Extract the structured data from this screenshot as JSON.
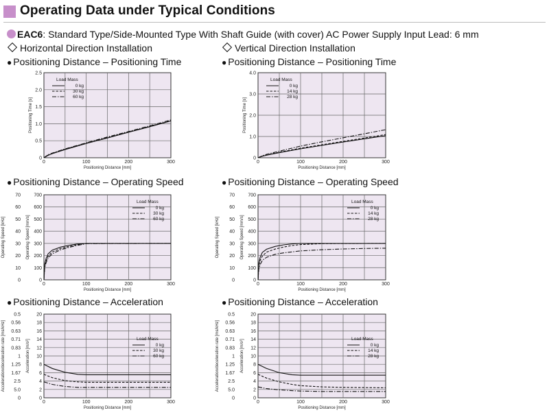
{
  "header": {
    "title": "Operating Data under Typical Conditions"
  },
  "subtitle": {
    "model": "EAC6",
    "description": ": Standard Type/Side-Mounted Type  With Shaft Guide (with cover)  AC Power Supply Input  Lead: 6 mm"
  },
  "sections": {
    "horizontal": "Horizontal Direction Installation",
    "vertical": "Vertical Direction Installation"
  },
  "plot_headings": {
    "time": "Positioning Distance – Positioning Time",
    "speed": "Positioning Distance – Operating Speed",
    "accel": "Positioning Distance – Acceleration"
  },
  "colors": {
    "plot_background": "#eee6f1",
    "accent": "#c78fca"
  },
  "chart_data": [
    {
      "id": "h-time",
      "type": "line",
      "xlabel": "Positioning Distance [mm]",
      "ylabel": "Positioning Time [s]",
      "xlim": [
        0,
        300
      ],
      "ylim": [
        0,
        2.5
      ],
      "xticks": [
        "0",
        "100",
        "200",
        "300"
      ],
      "yticks": [
        "0",
        "0.5",
        "1.0",
        "1.5",
        "2.0",
        "2.5"
      ],
      "legend_title": "Load Mass",
      "legend_position": "top-left",
      "series": [
        {
          "name": "0 kg",
          "style": "solid",
          "x": [
            0,
            10,
            20,
            50,
            100,
            150,
            200,
            250,
            300
          ],
          "y": [
            0,
            0.07,
            0.12,
            0.24,
            0.42,
            0.58,
            0.75,
            0.91,
            1.08
          ]
        },
        {
          "name": "30 kg",
          "style": "dashed",
          "x": [
            0,
            10,
            20,
            50,
            100,
            150,
            200,
            250,
            300
          ],
          "y": [
            0,
            0.08,
            0.13,
            0.25,
            0.43,
            0.59,
            0.76,
            0.92,
            1.09
          ]
        },
        {
          "name": "60 kg",
          "style": "dashdot",
          "x": [
            0,
            10,
            20,
            50,
            100,
            150,
            200,
            250,
            300
          ],
          "y": [
            0,
            0.09,
            0.14,
            0.26,
            0.44,
            0.61,
            0.77,
            0.94,
            1.11
          ]
        }
      ]
    },
    {
      "id": "v-time",
      "type": "line",
      "xlabel": "Positioning Distance [mm]",
      "ylabel": "Positioning Time [s]",
      "xlim": [
        0,
        300
      ],
      "ylim": [
        0,
        4.0
      ],
      "xticks": [
        "0",
        "100",
        "200",
        "300"
      ],
      "yticks": [
        "0",
        "1.0",
        "2.0",
        "3.0",
        "4.0"
      ],
      "legend_title": "Load Mass",
      "legend_position": "top-left",
      "series": [
        {
          "name": "0 kg",
          "style": "solid",
          "x": [
            0,
            10,
            20,
            50,
            100,
            150,
            200,
            250,
            300
          ],
          "y": [
            0,
            0.07,
            0.12,
            0.24,
            0.42,
            0.58,
            0.74,
            0.89,
            1.04
          ]
        },
        {
          "name": "14 kg",
          "style": "dashed",
          "x": [
            0,
            10,
            20,
            50,
            100,
            150,
            200,
            250,
            300
          ],
          "y": [
            0,
            0.08,
            0.13,
            0.26,
            0.45,
            0.61,
            0.77,
            0.93,
            1.09
          ]
        },
        {
          "name": "28 kg",
          "style": "dashdot",
          "x": [
            0,
            10,
            20,
            50,
            100,
            150,
            200,
            250,
            300
          ],
          "y": [
            0,
            0.09,
            0.16,
            0.31,
            0.55,
            0.75,
            0.94,
            1.13,
            1.32
          ]
        }
      ]
    },
    {
      "id": "h-speed",
      "type": "line",
      "xlabel": "Positioning Distance [mm]",
      "ylabel": "Operating Speed [mm/s]",
      "ylabel2": "Operating Speed [kHz]",
      "xlim": [
        0,
        300
      ],
      "ylim": [
        0,
        700
      ],
      "xticks": [
        "0",
        "100",
        "200",
        "300"
      ],
      "yticks": [
        "0",
        "100",
        "200",
        "300",
        "400",
        "500",
        "600",
        "700"
      ],
      "yticks2": [
        "0",
        "10",
        "20",
        "30",
        "40",
        "50",
        "60",
        "70"
      ],
      "legend_title": "Load Mass",
      "legend_position": "top-right",
      "series": [
        {
          "name": "0 kg",
          "style": "solid",
          "x": [
            0,
            2,
            5,
            10,
            20,
            40,
            60,
            80,
            100,
            300
          ],
          "y": [
            0,
            130,
            175,
            215,
            245,
            270,
            285,
            295,
            300,
            300
          ]
        },
        {
          "name": "30 kg",
          "style": "dashed",
          "x": [
            0,
            2,
            5,
            10,
            20,
            40,
            60,
            80,
            100,
            300
          ],
          "y": [
            0,
            115,
            155,
            195,
            230,
            258,
            276,
            290,
            300,
            300
          ]
        },
        {
          "name": "60 kg",
          "style": "dashdot",
          "x": [
            0,
            2,
            5,
            10,
            20,
            40,
            60,
            80,
            100,
            300
          ],
          "y": [
            0,
            100,
            140,
            180,
            215,
            248,
            268,
            284,
            298,
            300
          ]
        }
      ]
    },
    {
      "id": "v-speed",
      "type": "line",
      "xlabel": "Positioning Distance [mm]",
      "ylabel": "Operating Speed [mm/s]",
      "ylabel2": "Operating Speed [kHz]",
      "xlim": [
        0,
        300
      ],
      "ylim": [
        0,
        700
      ],
      "xticks": [
        "0",
        "100",
        "200",
        "300"
      ],
      "yticks": [
        "0",
        "100",
        "200",
        "300",
        "400",
        "500",
        "600",
        "700"
      ],
      "yticks2": [
        "0",
        "10",
        "20",
        "30",
        "40",
        "50",
        "60",
        "70"
      ],
      "legend_title": "Load Mass",
      "legend_position": "top-right",
      "series": [
        {
          "name": "0 kg",
          "style": "solid",
          "x": [
            0,
            2,
            5,
            10,
            20,
            40,
            60,
            80,
            100,
            130,
            300
          ],
          "y": [
            0,
            140,
            185,
            225,
            252,
            275,
            288,
            296,
            300,
            300,
            300
          ]
        },
        {
          "name": "14 kg",
          "style": "dashed",
          "x": [
            0,
            2,
            5,
            10,
            20,
            40,
            60,
            80,
            100,
            150,
            300
          ],
          "y": [
            0,
            115,
            160,
            195,
            228,
            253,
            270,
            282,
            290,
            298,
            300
          ]
        },
        {
          "name": "28 kg",
          "style": "dashdot",
          "x": [
            0,
            2,
            5,
            10,
            20,
            40,
            60,
            100,
            150,
            200,
            250,
            300
          ],
          "y": [
            0,
            90,
            125,
            160,
            185,
            210,
            222,
            238,
            248,
            254,
            258,
            260
          ]
        }
      ]
    },
    {
      "id": "h-accel",
      "type": "line",
      "xlabel": "Positioning Distance [mm]",
      "ylabel": "Acceleration [m/s²]",
      "ylabel2": "Acceleration/deceleration rate [ms/kHz]",
      "xlim": [
        0,
        300
      ],
      "ylim": [
        0,
        20
      ],
      "xticks": [
        "0",
        "100",
        "200",
        "300"
      ],
      "yticks": [
        "0",
        "2",
        "4",
        "6",
        "8",
        "10",
        "12",
        "14",
        "16",
        "18",
        "20"
      ],
      "yticks2": [
        "0",
        "5.0",
        "2.5",
        "1.67",
        "1.25",
        "1",
        "0.83",
        "0.71",
        "0.63",
        "0.56",
        "0.5"
      ],
      "legend_title": "Load Mass",
      "legend_position": "right",
      "series": [
        {
          "name": "0 kg",
          "style": "solid",
          "x": [
            0,
            20,
            50,
            80,
            100,
            300
          ],
          "y": [
            8,
            7,
            6.1,
            5.6,
            5.5,
            5.5
          ]
        },
        {
          "name": "30 kg",
          "style": "dashed",
          "x": [
            0,
            20,
            50,
            80,
            100,
            300
          ],
          "y": [
            5.6,
            4.8,
            4.1,
            3.8,
            3.7,
            3.7
          ]
        },
        {
          "name": "60 kg",
          "style": "dashdot",
          "x": [
            0,
            20,
            50,
            80,
            100,
            300
          ],
          "y": [
            3.8,
            3.2,
            2.7,
            2.5,
            2.5,
            2.5
          ]
        }
      ]
    },
    {
      "id": "v-accel",
      "type": "line",
      "xlabel": "Positioning Distance [mm]",
      "ylabel": "Acceleration [m/s²]",
      "ylabel2": "Acceleration/deceleration rate [ms/kHz]",
      "xlim": [
        0,
        300
      ],
      "ylim": [
        0,
        20
      ],
      "xticks": [
        "0",
        "100",
        "200",
        "300"
      ],
      "yticks": [
        "0",
        "2",
        "4",
        "6",
        "8",
        "10",
        "12",
        "14",
        "16",
        "18",
        "20"
      ],
      "yticks2": [
        "0",
        "5.0",
        "2.5",
        "1.67",
        "1.25",
        "1",
        "0.83",
        "0.71",
        "0.63",
        "0.56",
        "0.5"
      ],
      "legend_title": "Load Mass",
      "legend_position": "right",
      "series": [
        {
          "name": "0 kg",
          "style": "solid",
          "x": [
            0,
            20,
            50,
            80,
            100,
            300
          ],
          "y": [
            8,
            7,
            6,
            5.5,
            5.4,
            5.4
          ]
        },
        {
          "name": "14 kg",
          "style": "dashed",
          "x": [
            0,
            20,
            50,
            80,
            100,
            150,
            200,
            300
          ],
          "y": [
            5.6,
            4.7,
            3.8,
            3.2,
            2.9,
            2.6,
            2.5,
            2.4
          ]
        },
        {
          "name": "28 kg",
          "style": "dashdot",
          "x": [
            0,
            20,
            50,
            80,
            100,
            150,
            200,
            300
          ],
          "y": [
            2.6,
            2.2,
            1.9,
            1.7,
            1.6,
            1.5,
            1.5,
            1.5
          ]
        }
      ]
    }
  ]
}
